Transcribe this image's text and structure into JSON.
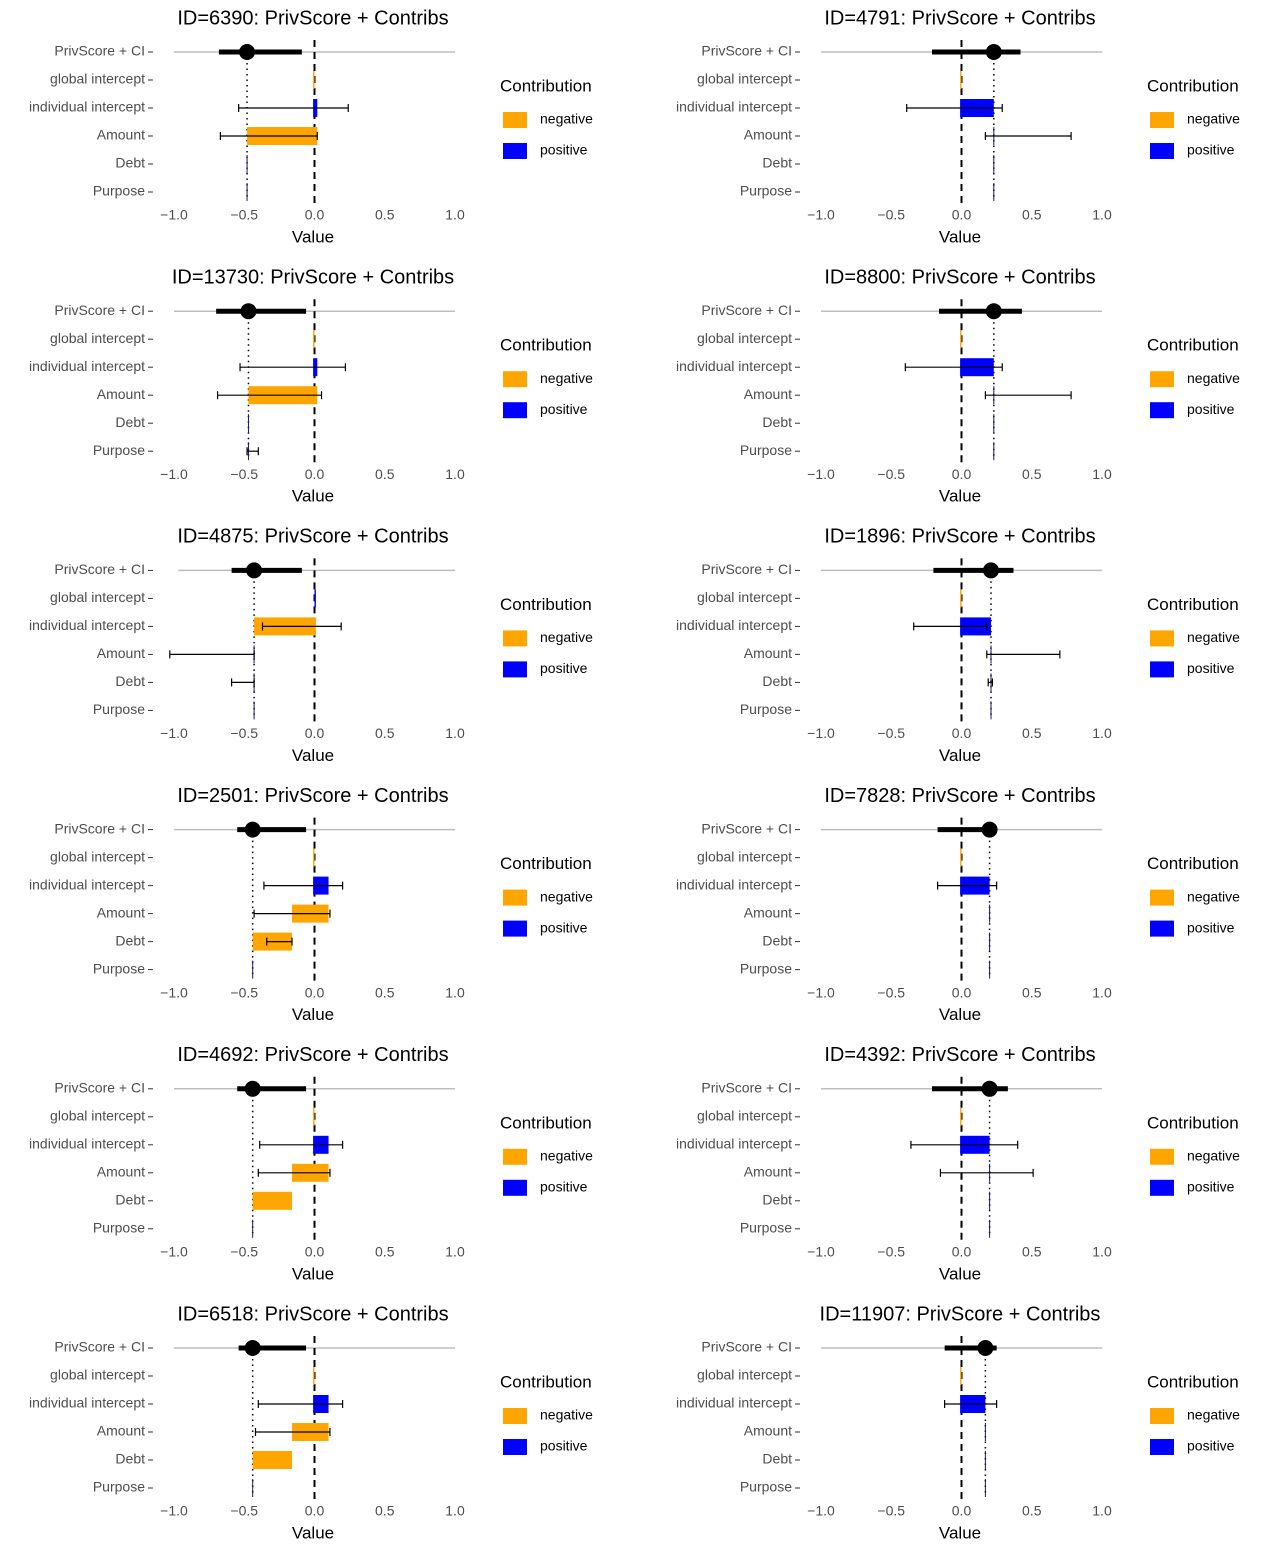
{
  "chart_data": [
    {
      "type": "waterfall",
      "title": "ID=6390: PrivScore + Contribs",
      "categories": [
        "PrivScore + CI",
        "global intercept",
        "individual intercept",
        "Amount",
        "Debt",
        "Purpose"
      ],
      "values": [
        -0.48,
        -0.01,
        0.03,
        -0.5,
        0,
        0
      ],
      "intervals": [
        [
          -0.68,
          -0.09
        ],
        null,
        [
          -0.54,
          0.24
        ],
        [
          -0.67,
          0.02
        ],
        null,
        null
      ],
      "score_range": [
        -1,
        1
      ],
      "zero_line": 0,
      "xlabel": "Value",
      "xlim": [
        -1,
        1
      ],
      "xticks": [
        {
          "value": -1,
          "label": "−1.0"
        },
        {
          "value": -0.5,
          "label": "−0.5"
        },
        {
          "value": 0,
          "label": "0.0"
        },
        {
          "value": 0.5,
          "label": "0.5"
        },
        {
          "value": 1,
          "label": "1.0"
        }
      ],
      "legend": {
        "title": "Contribution",
        "entries": [
          {
            "name": "negative",
            "color": "#ffa500"
          },
          {
            "name": "positive",
            "color": "#0000ff"
          }
        ]
      }
    },
    {
      "type": "waterfall",
      "title": "ID=4791: PrivScore + Contribs",
      "categories": [
        "PrivScore + CI",
        "global intercept",
        "individual intercept",
        "Amount",
        "Debt",
        "Purpose"
      ],
      "values": [
        0.23,
        -0.01,
        0.24,
        0,
        0,
        0
      ],
      "intervals": [
        [
          -0.21,
          0.42
        ],
        null,
        [
          -0.39,
          0.29
        ],
        [
          0.17,
          0.78
        ],
        null,
        null
      ],
      "score_range": [
        -1,
        1
      ],
      "zero_line": 0,
      "xlabel": "Value",
      "xlim": [
        -1,
        1
      ],
      "xticks": [
        {
          "value": -1,
          "label": "−1.0"
        },
        {
          "value": -0.5,
          "label": "−0.5"
        },
        {
          "value": 0,
          "label": "0.0"
        },
        {
          "value": 0.5,
          "label": "0.5"
        },
        {
          "value": 1,
          "label": "1.0"
        }
      ],
      "legend": {
        "title": "Contribution",
        "entries": [
          {
            "name": "negative",
            "color": "#ffa500"
          },
          {
            "name": "positive",
            "color": "#0000ff"
          }
        ]
      }
    },
    {
      "type": "waterfall",
      "title": "ID=13730: PrivScore + Contribs",
      "categories": [
        "PrivScore + CI",
        "global intercept",
        "individual intercept",
        "Amount",
        "Debt",
        "Purpose"
      ],
      "values": [
        -0.47,
        -0.01,
        0.03,
        -0.49,
        0,
        0
      ],
      "intervals": [
        [
          -0.7,
          -0.06
        ],
        null,
        [
          -0.53,
          0.22
        ],
        [
          -0.69,
          0.05
        ],
        null,
        [
          -0.48,
          -0.4
        ]
      ],
      "score_range": [
        -1,
        1
      ],
      "zero_line": 0,
      "xlabel": "Value",
      "xlim": [
        -1,
        1
      ],
      "xticks": [
        {
          "value": -1,
          "label": "−1.0"
        },
        {
          "value": -0.5,
          "label": "−0.5"
        },
        {
          "value": 0,
          "label": "0.0"
        },
        {
          "value": 0.5,
          "label": "0.5"
        },
        {
          "value": 1,
          "label": "1.0"
        }
      ],
      "legend": {
        "title": "Contribution",
        "entries": [
          {
            "name": "negative",
            "color": "#ffa500"
          },
          {
            "name": "positive",
            "color": "#0000ff"
          }
        ]
      }
    },
    {
      "type": "waterfall",
      "title": "ID=8800: PrivScore + Contribs",
      "categories": [
        "PrivScore + CI",
        "global intercept",
        "individual intercept",
        "Amount",
        "Debt",
        "Purpose"
      ],
      "values": [
        0.23,
        -0.01,
        0.24,
        0,
        0,
        0
      ],
      "intervals": [
        [
          -0.16,
          0.43
        ],
        null,
        [
          -0.4,
          0.29
        ],
        [
          0.17,
          0.78
        ],
        null,
        null
      ],
      "score_range": [
        -1,
        1
      ],
      "zero_line": 0,
      "xlabel": "Value",
      "xlim": [
        -1,
        1
      ],
      "xticks": [
        {
          "value": -1,
          "label": "−1.0"
        },
        {
          "value": -0.5,
          "label": "−0.5"
        },
        {
          "value": 0,
          "label": "0.0"
        },
        {
          "value": 0.5,
          "label": "0.5"
        },
        {
          "value": 1,
          "label": "1.0"
        }
      ],
      "legend": {
        "title": "Contribution",
        "entries": [
          {
            "name": "negative",
            "color": "#ffa500"
          },
          {
            "name": "positive",
            "color": "#0000ff"
          }
        ]
      }
    },
    {
      "type": "waterfall",
      "title": "ID=4875: PrivScore + Contribs",
      "categories": [
        "PrivScore + CI",
        "global intercept",
        "individual intercept",
        "Amount",
        "Debt",
        "Purpose"
      ],
      "values": [
        -0.43,
        0.01,
        -0.44,
        0,
        0,
        0
      ],
      "intervals": [
        [
          -0.59,
          -0.09
        ],
        null,
        [
          -0.37,
          0.19
        ],
        [
          -1.03,
          -0.43
        ],
        [
          -0.59,
          -0.43
        ],
        null
      ],
      "score_range": [
        -0.97,
        1
      ],
      "zero_line": 0,
      "xlabel": "Value",
      "xlim": [
        -1,
        1
      ],
      "xticks": [
        {
          "value": -1,
          "label": "−1.0"
        },
        {
          "value": -0.5,
          "label": "−0.5"
        },
        {
          "value": 0,
          "label": "0.0"
        },
        {
          "value": 0.5,
          "label": "0.5"
        },
        {
          "value": 1,
          "label": "1.0"
        }
      ],
      "legend": {
        "title": "Contribution",
        "entries": [
          {
            "name": "negative",
            "color": "#ffa500"
          },
          {
            "name": "positive",
            "color": "#0000ff"
          }
        ]
      }
    },
    {
      "type": "waterfall",
      "title": "ID=1896: PrivScore + Contribs",
      "categories": [
        "PrivScore + CI",
        "global intercept",
        "individual intercept",
        "Amount",
        "Debt",
        "Purpose"
      ],
      "values": [
        0.21,
        -0.01,
        0.22,
        0,
        0,
        0
      ],
      "intervals": [
        [
          -0.2,
          0.37
        ],
        null,
        [
          -0.34,
          0.18
        ],
        [
          0.18,
          0.7
        ],
        [
          0.19,
          0.22
        ],
        null
      ],
      "score_range": [
        -1,
        1
      ],
      "zero_line": 0,
      "xlabel": "Value",
      "xlim": [
        -1,
        1
      ],
      "xticks": [
        {
          "value": -1,
          "label": "−1.0"
        },
        {
          "value": -0.5,
          "label": "−0.5"
        },
        {
          "value": 0,
          "label": "0.0"
        },
        {
          "value": 0.5,
          "label": "0.5"
        },
        {
          "value": 1,
          "label": "1.0"
        }
      ],
      "legend": {
        "title": "Contribution",
        "entries": [
          {
            "name": "negative",
            "color": "#ffa500"
          },
          {
            "name": "positive",
            "color": "#0000ff"
          }
        ]
      }
    },
    {
      "type": "waterfall",
      "title": "ID=2501: PrivScore + Contribs",
      "categories": [
        "PrivScore + CI",
        "global intercept",
        "individual intercept",
        "Amount",
        "Debt",
        "Purpose"
      ],
      "values": [
        -0.44,
        -0.01,
        0.11,
        -0.26,
        -0.28,
        0
      ],
      "intervals": [
        [
          -0.55,
          -0.06
        ],
        null,
        [
          -0.36,
          0.2
        ],
        [
          -0.43,
          0.11
        ],
        [
          -0.34,
          -0.16
        ],
        null
      ],
      "score_range": [
        -1,
        1
      ],
      "zero_line": 0,
      "xlabel": "Value",
      "xlim": [
        -1,
        1
      ],
      "xticks": [
        {
          "value": -1,
          "label": "−1.0"
        },
        {
          "value": -0.5,
          "label": "−0.5"
        },
        {
          "value": 0,
          "label": "0.0"
        },
        {
          "value": 0.5,
          "label": "0.5"
        },
        {
          "value": 1,
          "label": "1.0"
        }
      ],
      "legend": {
        "title": "Contribution",
        "entries": [
          {
            "name": "negative",
            "color": "#ffa500"
          },
          {
            "name": "positive",
            "color": "#0000ff"
          }
        ]
      }
    },
    {
      "type": "waterfall",
      "title": "ID=7828: PrivScore + Contribs",
      "categories": [
        "PrivScore + CI",
        "global intercept",
        "individual intercept",
        "Amount",
        "Debt",
        "Purpose"
      ],
      "values": [
        0.2,
        -0.01,
        0.21,
        0,
        0,
        0
      ],
      "intervals": [
        [
          -0.17,
          0.2
        ],
        null,
        [
          -0.17,
          0.25
        ],
        null,
        null,
        null
      ],
      "score_range": [
        -1,
        1
      ],
      "zero_line": 0,
      "xlabel": "Value",
      "xlim": [
        -1,
        1
      ],
      "xticks": [
        {
          "value": -1,
          "label": "−1.0"
        },
        {
          "value": -0.5,
          "label": "−0.5"
        },
        {
          "value": 0,
          "label": "0.0"
        },
        {
          "value": 0.5,
          "label": "0.5"
        },
        {
          "value": 1,
          "label": "1.0"
        }
      ],
      "legend": {
        "title": "Contribution",
        "entries": [
          {
            "name": "negative",
            "color": "#ffa500"
          },
          {
            "name": "positive",
            "color": "#0000ff"
          }
        ]
      }
    },
    {
      "type": "waterfall",
      "title": "ID=4692: PrivScore + Contribs",
      "categories": [
        "PrivScore + CI",
        "global intercept",
        "individual intercept",
        "Amount",
        "Debt",
        "Purpose"
      ],
      "values": [
        -0.44,
        -0.01,
        0.11,
        -0.26,
        -0.28,
        0
      ],
      "intervals": [
        [
          -0.55,
          -0.06
        ],
        null,
        [
          -0.39,
          0.2
        ],
        [
          -0.4,
          0.11
        ],
        null,
        null
      ],
      "score_range": [
        -1,
        1
      ],
      "zero_line": 0,
      "xlabel": "Value",
      "xlim": [
        -1,
        1
      ],
      "xticks": [
        {
          "value": -1,
          "label": "−1.0"
        },
        {
          "value": -0.5,
          "label": "−0.5"
        },
        {
          "value": 0,
          "label": "0.0"
        },
        {
          "value": 0.5,
          "label": "0.5"
        },
        {
          "value": 1,
          "label": "1.0"
        }
      ],
      "legend": {
        "title": "Contribution",
        "entries": [
          {
            "name": "negative",
            "color": "#ffa500"
          },
          {
            "name": "positive",
            "color": "#0000ff"
          }
        ]
      }
    },
    {
      "type": "waterfall",
      "title": "ID=4392: PrivScore + Contribs",
      "categories": [
        "PrivScore + CI",
        "global intercept",
        "individual intercept",
        "Amount",
        "Debt",
        "Purpose"
      ],
      "values": [
        0.2,
        -0.01,
        0.21,
        0,
        0,
        0
      ],
      "intervals": [
        [
          -0.21,
          0.33
        ],
        null,
        [
          -0.36,
          0.4
        ],
        [
          -0.15,
          0.51
        ],
        null,
        null
      ],
      "score_range": [
        -1,
        1
      ],
      "zero_line": 0,
      "xlabel": "Value",
      "xlim": [
        -1,
        1
      ],
      "xticks": [
        {
          "value": -1,
          "label": "−1.0"
        },
        {
          "value": -0.5,
          "label": "−0.5"
        },
        {
          "value": 0,
          "label": "0.0"
        },
        {
          "value": 0.5,
          "label": "0.5"
        },
        {
          "value": 1,
          "label": "1.0"
        }
      ],
      "legend": {
        "title": "Contribution",
        "entries": [
          {
            "name": "negative",
            "color": "#ffa500"
          },
          {
            "name": "positive",
            "color": "#0000ff"
          }
        ]
      }
    },
    {
      "type": "waterfall",
      "title": "ID=6518: PrivScore + Contribs",
      "categories": [
        "PrivScore + CI",
        "global intercept",
        "individual intercept",
        "Amount",
        "Debt",
        "Purpose"
      ],
      "values": [
        -0.44,
        -0.01,
        0.11,
        -0.26,
        -0.28,
        0
      ],
      "intervals": [
        [
          -0.54,
          -0.06
        ],
        null,
        [
          -0.4,
          0.2
        ],
        [
          -0.42,
          0.11
        ],
        null,
        null
      ],
      "score_range": [
        -1,
        1
      ],
      "zero_line": 0,
      "xlabel": "Value",
      "xlim": [
        -1,
        1
      ],
      "xticks": [
        {
          "value": -1,
          "label": "−1.0"
        },
        {
          "value": -0.5,
          "label": "−0.5"
        },
        {
          "value": 0,
          "label": "0.0"
        },
        {
          "value": 0.5,
          "label": "0.5"
        },
        {
          "value": 1,
          "label": "1.0"
        }
      ],
      "legend": {
        "title": "Contribution",
        "entries": [
          {
            "name": "negative",
            "color": "#ffa500"
          },
          {
            "name": "positive",
            "color": "#0000ff"
          }
        ]
      }
    },
    {
      "type": "waterfall",
      "title": "ID=11907: PrivScore + Contribs",
      "categories": [
        "PrivScore + CI",
        "global intercept",
        "individual intercept",
        "Amount",
        "Debt",
        "Purpose"
      ],
      "values": [
        0.17,
        -0.01,
        0.18,
        0,
        0,
        0
      ],
      "intervals": [
        [
          -0.12,
          0.25
        ],
        null,
        [
          -0.12,
          0.25
        ],
        null,
        null,
        null
      ],
      "score_range": [
        -1,
        1
      ],
      "zero_line": 0,
      "xlabel": "Value",
      "xlim": [
        -1,
        1
      ],
      "xticks": [
        {
          "value": -1,
          "label": "−1.0"
        },
        {
          "value": -0.5,
          "label": "−0.5"
        },
        {
          "value": 0,
          "label": "0.0"
        },
        {
          "value": 0.5,
          "label": "0.5"
        },
        {
          "value": 1,
          "label": "1.0"
        }
      ],
      "legend": {
        "title": "Contribution",
        "entries": [
          {
            "name": "negative",
            "color": "#ffa500"
          },
          {
            "name": "positive",
            "color": "#0000ff"
          }
        ]
      }
    }
  ]
}
